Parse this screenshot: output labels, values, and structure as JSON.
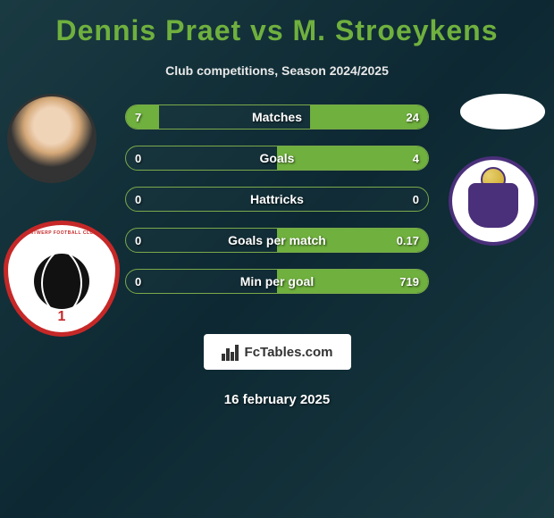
{
  "title_color": "#6fb03e",
  "header": {
    "player1": "Dennis Praet",
    "vs": "vs",
    "player2": "M. Stroeykens",
    "subtitle": "Club competitions, Season 2024/2025"
  },
  "stats": {
    "bar_border_color": "#7aa94a",
    "fill_color": "#6fb03e",
    "rows": [
      {
        "label": "Matches",
        "left": "7",
        "right": "24",
        "left_pct": 11,
        "right_pct": 39
      },
      {
        "label": "Goals",
        "left": "0",
        "right": "4",
        "left_pct": 0,
        "right_pct": 50
      },
      {
        "label": "Hattricks",
        "left": "0",
        "right": "0",
        "left_pct": 0,
        "right_pct": 0
      },
      {
        "label": "Goals per match",
        "left": "0",
        "right": "0.17",
        "left_pct": 0,
        "right_pct": 50
      },
      {
        "label": "Min per goal",
        "left": "0",
        "right": "719",
        "left_pct": 0,
        "right_pct": 50
      }
    ]
  },
  "clubs": {
    "left_name": "Royal Antwerp FC",
    "left_number": "1",
    "left_primary": "#c62828",
    "right_name": "RSC Anderlecht",
    "right_primary": "#4a2f7a"
  },
  "footer": {
    "logo_text": "FcTables.com",
    "date": "16 february 2025"
  }
}
